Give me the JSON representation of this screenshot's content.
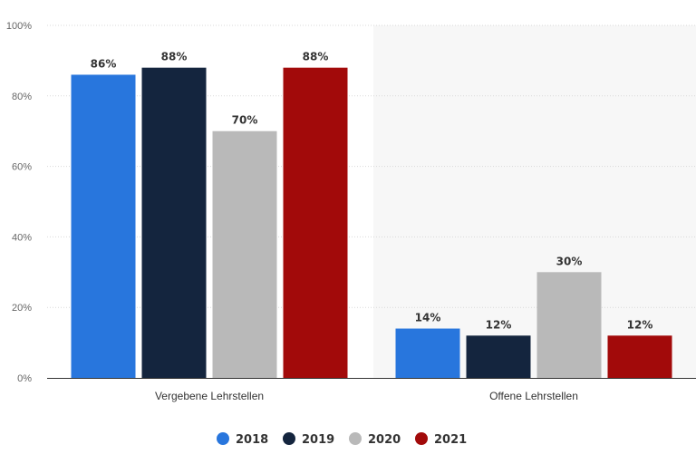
{
  "chart_data": {
    "type": "bar",
    "categories": [
      "Vergebene Lehrstellen",
      "Offene Lehrstellen"
    ],
    "series": [
      {
        "name": "2018",
        "color": "#2876dd",
        "values": [
          86,
          14
        ]
      },
      {
        "name": "2019",
        "color": "#14253e",
        "values": [
          88,
          12
        ]
      },
      {
        "name": "2020",
        "color": "#b9b9b9",
        "values": [
          70,
          30
        ]
      },
      {
        "name": "2021",
        "color": "#a20a0a",
        "values": [
          88,
          12
        ]
      }
    ],
    "value_suffix": "%",
    "ylim": [
      0,
      100
    ],
    "yticks": [
      0,
      20,
      40,
      60,
      80,
      100
    ],
    "ytick_labels": [
      "0%",
      "20%",
      "40%",
      "60%",
      "80%",
      "100%"
    ],
    "grid": true,
    "legend_position": "bottom",
    "title": "",
    "xlabel": "",
    "ylabel": "",
    "highlight_band_color": "#f7f7f7"
  }
}
